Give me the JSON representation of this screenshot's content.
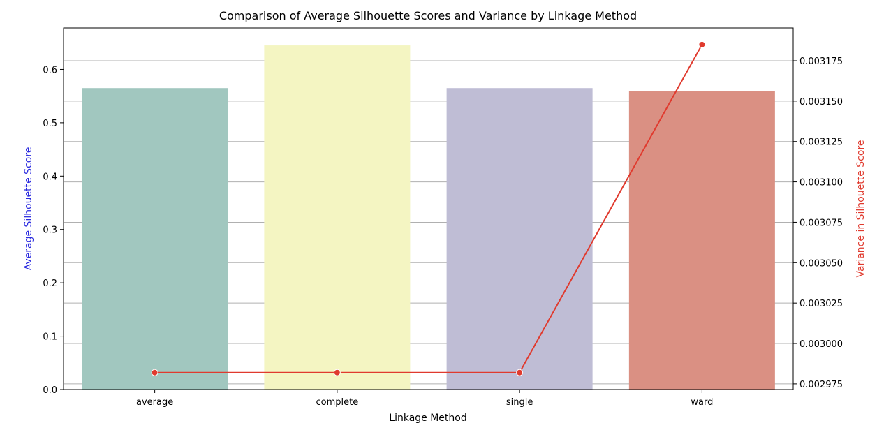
{
  "chart_data": {
    "type": "bar",
    "title": "Comparison of Average Silhouette Scores and Variance by Linkage Method",
    "xlabel": "Linkage Method",
    "ylabel": "Average Silhouette Score",
    "ylabel_right": "Variance in Silhouette Score",
    "ylabel_color": "#2b2bdf",
    "ylabel_right_color": "#e03a2e",
    "categories": [
      "average",
      "complete",
      "single",
      "ward"
    ],
    "series": [
      {
        "type": "bar",
        "axis": "left",
        "values": [
          0.565,
          0.645,
          0.565,
          0.56
        ],
        "colors": [
          "#a1c7bf",
          "#f4f5c2",
          "#bfbdd5",
          "#da9083"
        ]
      },
      {
        "type": "line",
        "axis": "right",
        "values": [
          0.002982,
          0.002982,
          0.002982,
          0.003185
        ],
        "color": "#e03a2e"
      }
    ],
    "ylim": [
      0,
      0.6778
    ],
    "yticks": [
      0.0,
      0.1,
      0.2,
      0.3,
      0.4,
      0.5,
      0.6
    ],
    "ytick_labels": [
      "0.0",
      "0.1",
      "0.2",
      "0.3",
      "0.4",
      "0.5",
      "0.6"
    ],
    "ylim_right": [
      0.0029715,
      0.0031953
    ],
    "yticks_right": [
      0.002975,
      0.003,
      0.003025,
      0.00305,
      0.003075,
      0.0031,
      0.003125,
      0.00315,
      0.003175
    ],
    "ytick_labels_right": [
      "0.002975",
      "0.003000",
      "0.003025",
      "0.003050",
      "0.003075",
      "0.003100",
      "0.003125",
      "0.003150",
      "0.003175"
    ],
    "grid": "horizontal gridlines at right-axis ticks"
  }
}
